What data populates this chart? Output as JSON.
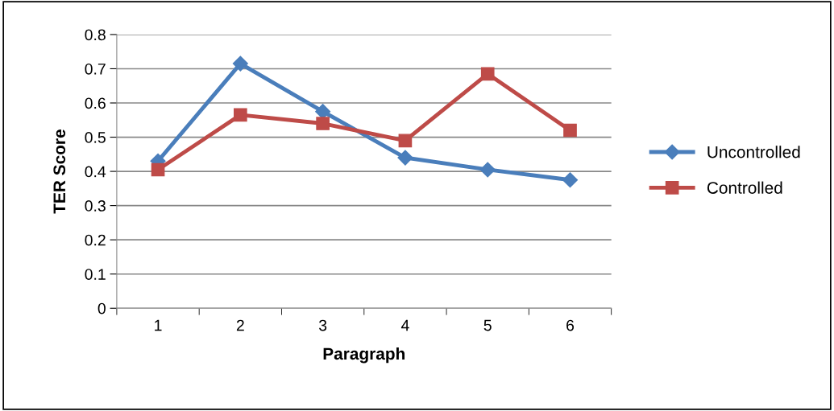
{
  "chart_data": {
    "type": "line",
    "xlabel": "Paragraph",
    "ylabel": "TER Score",
    "categories": [
      "1",
      "2",
      "3",
      "4",
      "5",
      "6"
    ],
    "series": [
      {
        "name": "Uncontrolled",
        "color": "#4a7ebb",
        "marker": "diamond",
        "values": [
          0.43,
          0.715,
          0.575,
          0.44,
          0.405,
          0.375
        ]
      },
      {
        "name": "Controlled",
        "color": "#be4b48",
        "marker": "square",
        "values": [
          0.405,
          0.565,
          0.54,
          0.49,
          0.685,
          0.52
        ]
      }
    ],
    "ylim": [
      0,
      0.8
    ],
    "yticks": [
      0,
      0.1,
      0.2,
      0.3,
      0.4,
      0.5,
      0.6,
      0.7,
      0.8
    ],
    "grid": "y",
    "legend": "right",
    "line_style": "solid"
  }
}
